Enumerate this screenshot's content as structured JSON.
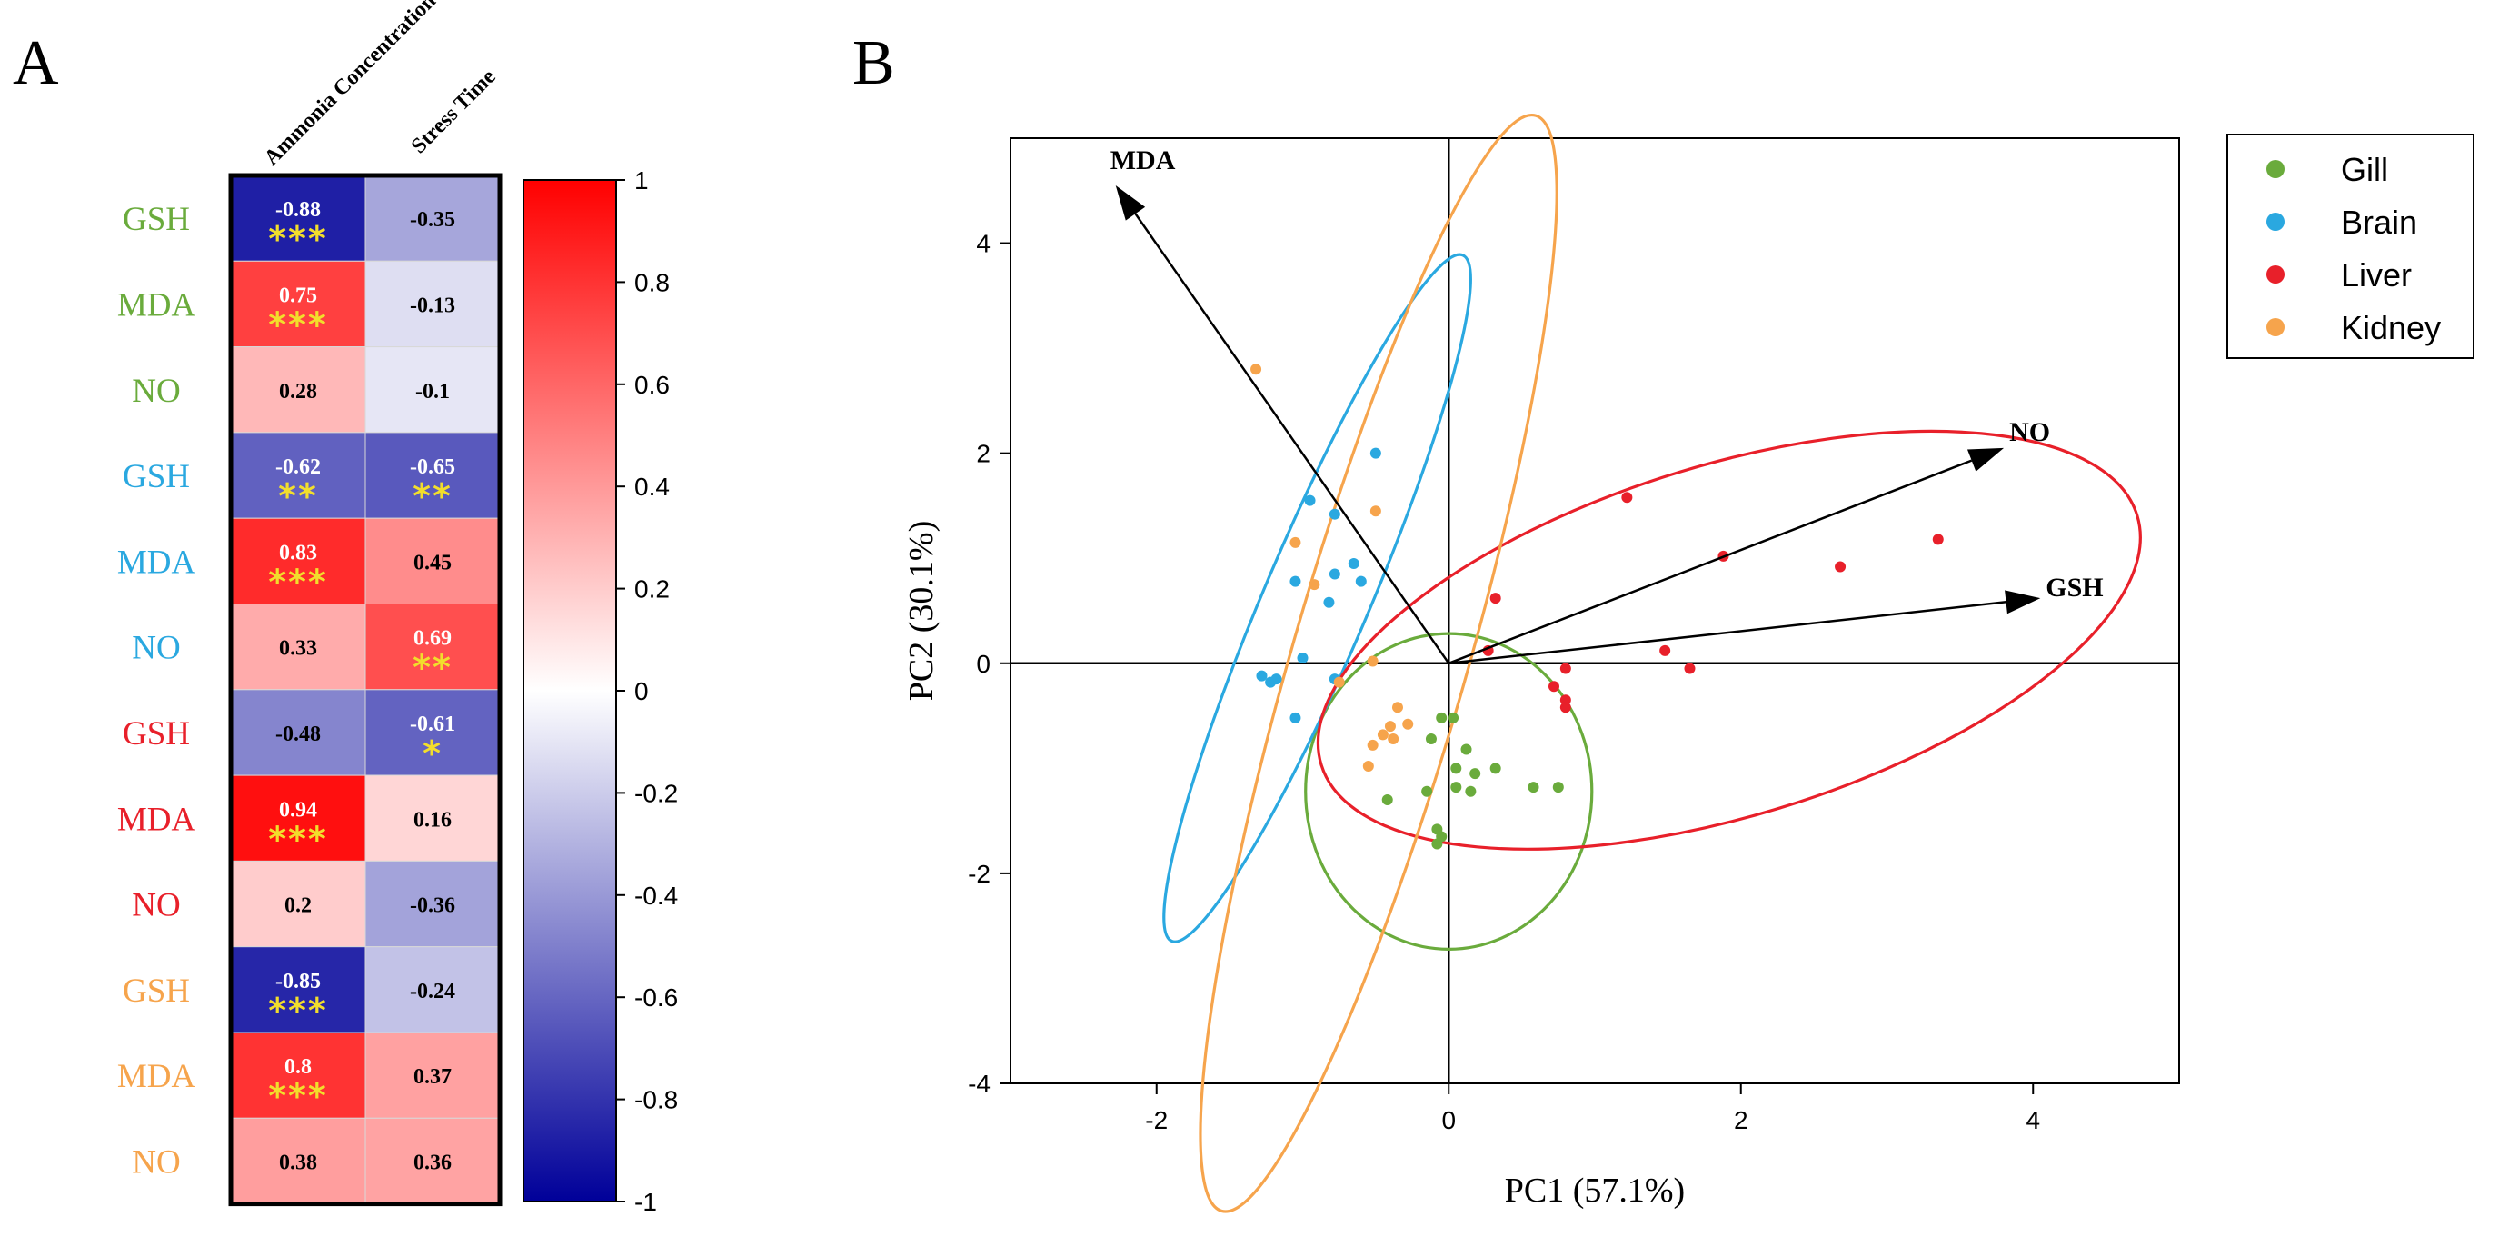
{
  "panels": {
    "a_label": "A",
    "b_label": "B"
  },
  "colors": {
    "Gill": "#6aab3c",
    "Brain": "#2aa8e0",
    "Liver": "#e8202a",
    "Kidney": "#f6a44c",
    "star": "#f2de2c",
    "heat_neg": "#000099",
    "heat_mid": "#ffffff",
    "heat_pos": "#ff0000"
  },
  "chart_data": [
    {
      "type": "heatmap",
      "columns": [
        "Ammonia Concentration",
        "Stress Time"
      ],
      "rows": [
        {
          "label": "GSH",
          "group": "Gill",
          "values": [
            -0.88,
            -0.35
          ],
          "sig": [
            "***",
            ""
          ]
        },
        {
          "label": "MDA",
          "group": "Gill",
          "values": [
            0.75,
            -0.13
          ],
          "sig": [
            "***",
            ""
          ]
        },
        {
          "label": "NO",
          "group": "Gill",
          "values": [
            0.28,
            -0.1
          ],
          "sig": [
            "",
            ""
          ]
        },
        {
          "label": "GSH",
          "group": "Brain",
          "values": [
            -0.62,
            -0.65
          ],
          "sig": [
            "**",
            "**"
          ]
        },
        {
          "label": "MDA",
          "group": "Brain",
          "values": [
            0.83,
            0.45
          ],
          "sig": [
            "***",
            ""
          ]
        },
        {
          "label": "NO",
          "group": "Brain",
          "values": [
            0.33,
            0.69
          ],
          "sig": [
            "",
            "**"
          ]
        },
        {
          "label": "GSH",
          "group": "Liver",
          "values": [
            -0.48,
            -0.61
          ],
          "sig": [
            "",
            "*"
          ]
        },
        {
          "label": "MDA",
          "group": "Liver",
          "values": [
            0.94,
            0.16
          ],
          "sig": [
            "***",
            ""
          ]
        },
        {
          "label": "NO",
          "group": "Liver",
          "values": [
            0.2,
            -0.36
          ],
          "sig": [
            "",
            ""
          ]
        },
        {
          "label": "GSH",
          "group": "Kidney",
          "values": [
            -0.85,
            -0.24
          ],
          "sig": [
            "***",
            ""
          ]
        },
        {
          "label": "MDA",
          "group": "Kidney",
          "values": [
            0.8,
            0.37
          ],
          "sig": [
            "***",
            ""
          ]
        },
        {
          "label": "NO",
          "group": "Kidney",
          "values": [
            0.38,
            0.36
          ],
          "sig": [
            "",
            ""
          ]
        }
      ],
      "colorbar": {
        "range": [
          -1,
          1
        ],
        "ticks": [
          "1",
          "0.8",
          "0.6",
          "0.4",
          "0.2",
          "0",
          "-0.2",
          "-0.4",
          "-0.6",
          "-0.8",
          "-1"
        ]
      }
    },
    {
      "type": "scatter",
      "xlabel": "PC1 (57.1%)",
      "ylabel": "PC2 (30.1%)",
      "xlim": [
        -3,
        5
      ],
      "ylim": [
        -4,
        5
      ],
      "xticks": [
        "-2",
        "0",
        "2",
        "4"
      ],
      "yticks": [
        "-4",
        "-2",
        "0",
        "2",
        "4"
      ],
      "legend": {
        "position": "top-right",
        "entries": [
          "Gill",
          "Brain",
          "Liver",
          "Kidney"
        ]
      },
      "series": [
        {
          "name": "Gill",
          "points": [
            [
              -0.05,
              -0.52
            ],
            [
              0.03,
              -0.52
            ],
            [
              -0.12,
              -0.72
            ],
            [
              0.12,
              -0.82
            ],
            [
              0.05,
              -1.0
            ],
            [
              0.18,
              -1.05
            ],
            [
              0.32,
              -1.0
            ],
            [
              0.75,
              -1.18
            ],
            [
              0.58,
              -1.18
            ],
            [
              -0.15,
              -1.22
            ],
            [
              0.05,
              -1.18
            ],
            [
              0.15,
              -1.22
            ],
            [
              -0.42,
              -1.3
            ],
            [
              -0.08,
              -1.58
            ],
            [
              -0.05,
              -1.65
            ],
            [
              -0.08,
              -1.72
            ]
          ]
        },
        {
          "name": "Brain",
          "points": [
            [
              -0.5,
              2.0
            ],
            [
              -0.95,
              1.55
            ],
            [
              -0.78,
              1.42
            ],
            [
              -0.65,
              0.95
            ],
            [
              -0.78,
              0.85
            ],
            [
              -0.6,
              0.78
            ],
            [
              -1.05,
              0.78
            ],
            [
              -0.82,
              0.58
            ],
            [
              -1.0,
              0.05
            ],
            [
              -1.28,
              -0.12
            ],
            [
              -1.18,
              -0.15
            ],
            [
              -1.22,
              -0.18
            ],
            [
              -0.78,
              -0.15
            ],
            [
              -1.05,
              -0.52
            ]
          ]
        },
        {
          "name": "Liver",
          "points": [
            [
              1.22,
              1.58
            ],
            [
              3.35,
              1.18
            ],
            [
              1.88,
              1.02
            ],
            [
              2.68,
              0.92
            ],
            [
              0.32,
              0.62
            ],
            [
              0.27,
              0.12
            ],
            [
              1.48,
              0.12
            ],
            [
              0.8,
              -0.05
            ],
            [
              1.65,
              -0.05
            ],
            [
              0.72,
              -0.22
            ],
            [
              0.8,
              -0.35
            ],
            [
              0.8,
              -0.42
            ]
          ]
        },
        {
          "name": "Kidney",
          "points": [
            [
              -1.32,
              2.8
            ],
            [
              -0.5,
              1.45
            ],
            [
              -1.05,
              1.15
            ],
            [
              -0.92,
              0.75
            ],
            [
              -0.52,
              0.02
            ],
            [
              -0.75,
              -0.18
            ],
            [
              -0.35,
              -0.42
            ],
            [
              -0.4,
              -0.6
            ],
            [
              -0.28,
              -0.58
            ],
            [
              -0.45,
              -0.68
            ],
            [
              -0.52,
              -0.78
            ],
            [
              -0.38,
              -0.72
            ],
            [
              -0.55,
              -0.98
            ]
          ]
        }
      ],
      "loadings": [
        {
          "label": "MDA",
          "x": -2.28,
          "y": 4.55
        },
        {
          "label": "NO",
          "x": 3.8,
          "y": 2.05
        },
        {
          "label": "GSH",
          "x": 4.05,
          "y": 0.62
        }
      ],
      "ellipses": [
        {
          "group": "Gill",
          "cx": 0.0,
          "cy": -1.22,
          "rx": 0.98,
          "ry": 1.08,
          "angle_deg": 0
        },
        {
          "group": "Brain",
          "cx": -0.9,
          "cy": 0.62,
          "rx": 2.55,
          "ry": 0.36,
          "angle_deg": 67
        },
        {
          "group": "Liver",
          "cx": 1.92,
          "cy": 0.22,
          "rx": 2.92,
          "ry": 1.2,
          "angle_deg": 17
        },
        {
          "group": "Kidney",
          "cx": -0.48,
          "cy": 0.0,
          "rx": 3.9,
          "ry": 0.6,
          "angle_deg": 74
        }
      ]
    }
  ]
}
